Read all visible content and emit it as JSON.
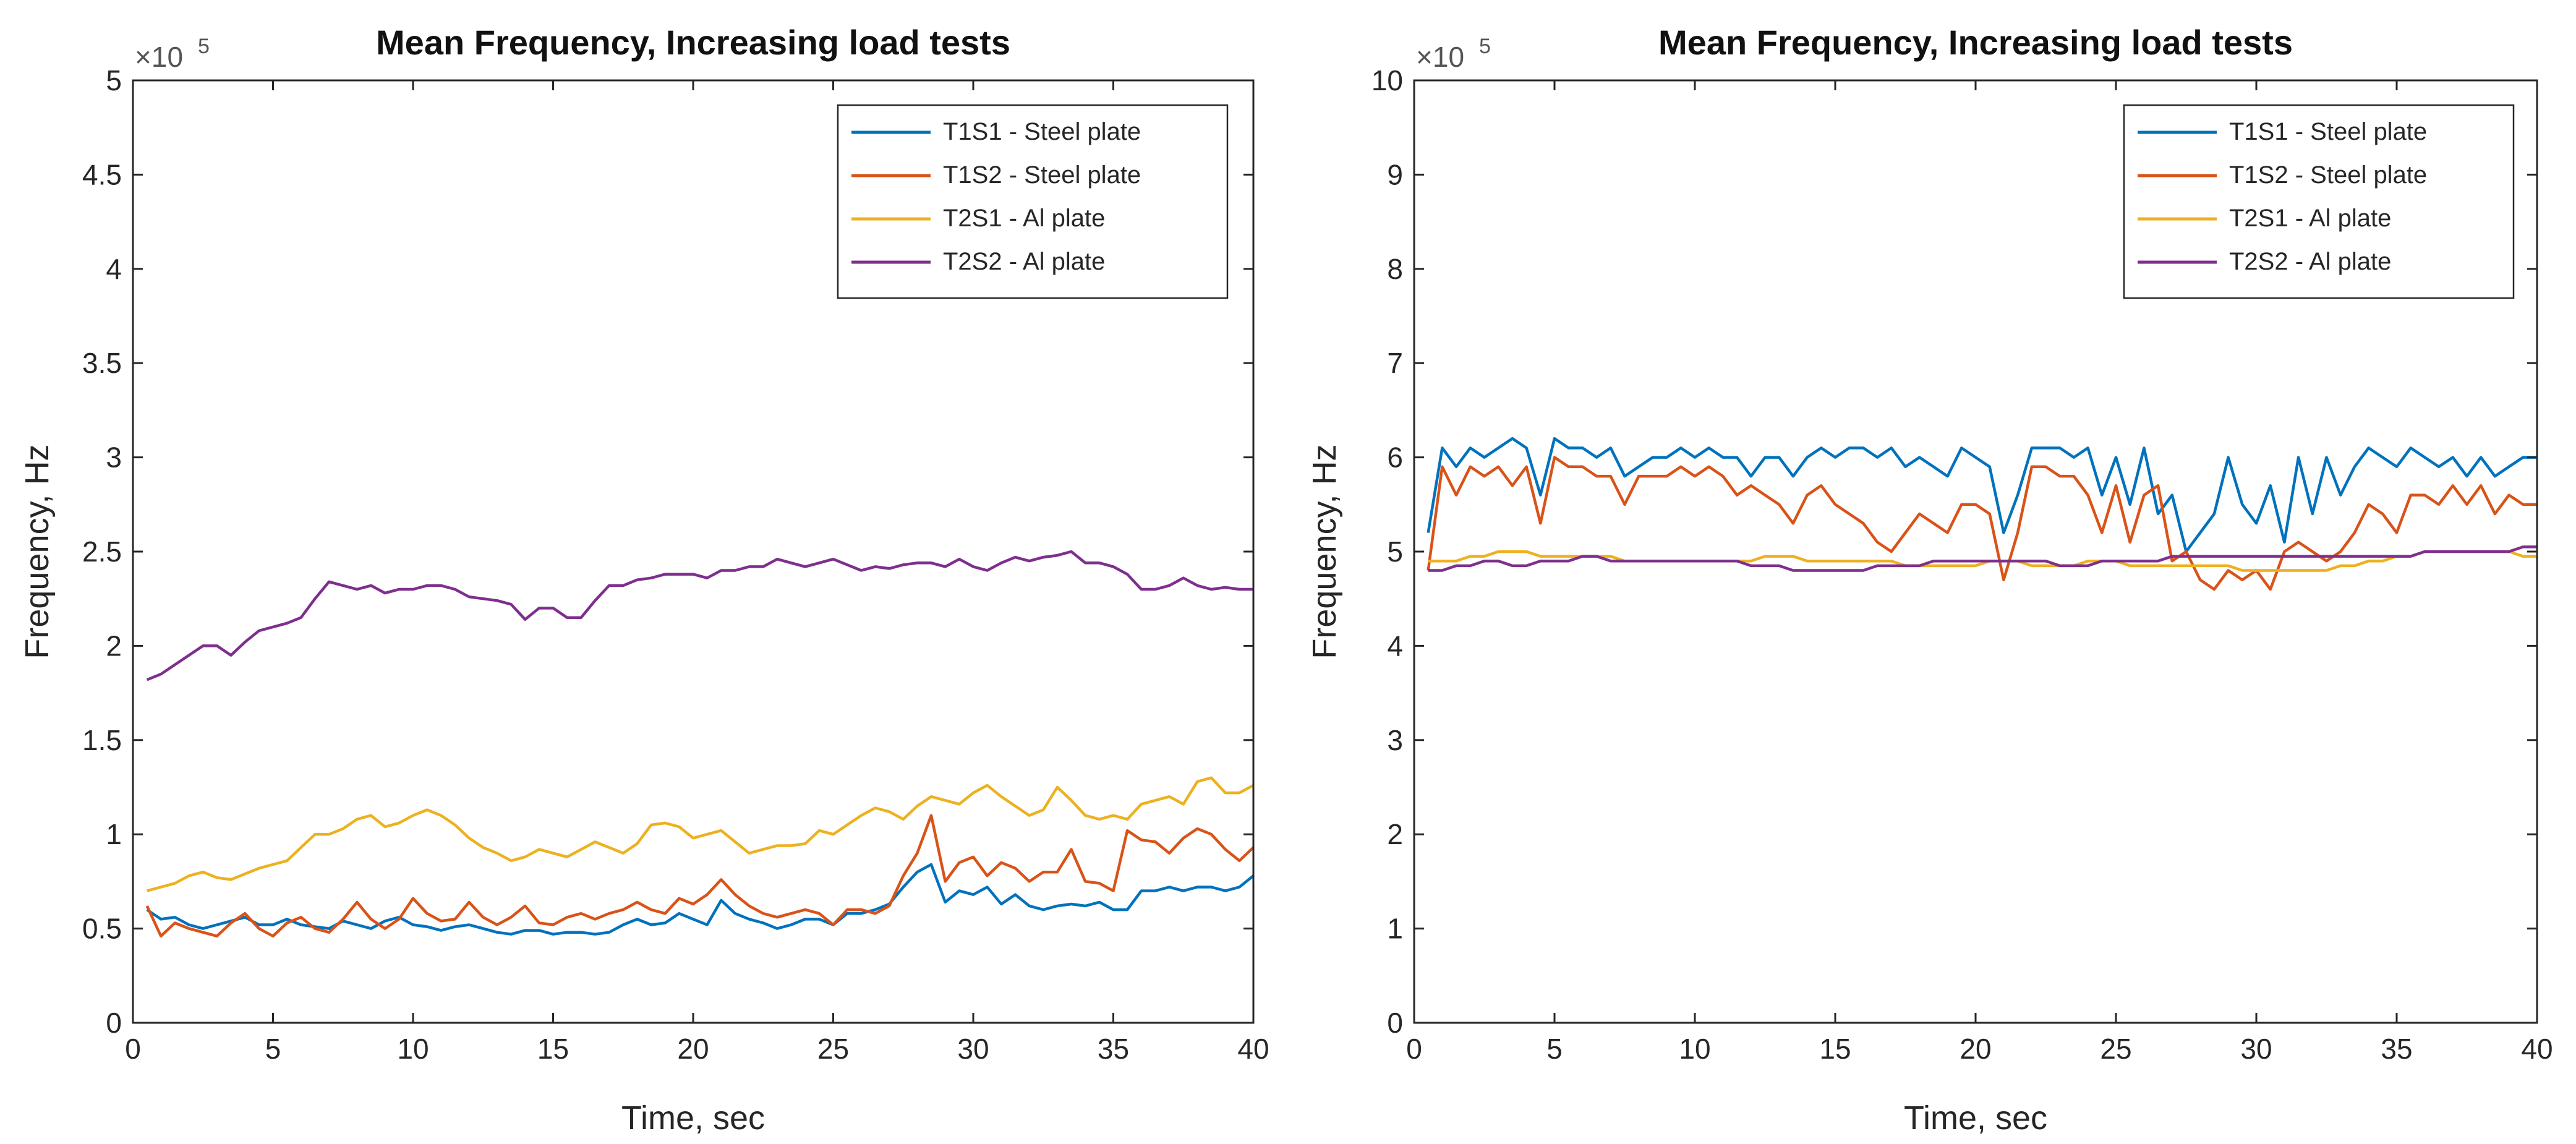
{
  "chart_data": [
    {
      "type": "line",
      "title": "Mean Frequency, Increasing load tests",
      "xlabel": "Time, sec",
      "ylabel": "Frequency, Hz",
      "exponent_label": "×10",
      "exponent_power": "5",
      "xlim": [
        0,
        40
      ],
      "ylim": [
        0,
        5
      ],
      "xticks": [
        "0",
        "5",
        "10",
        "15",
        "20",
        "25",
        "30",
        "35",
        "40"
      ],
      "yticks": [
        "0",
        "0.5",
        "1",
        "1.5",
        "2",
        "2.5",
        "3",
        "3.5",
        "4",
        "4.5",
        "5"
      ],
      "legend_position": "top-right",
      "x": [
        0.5,
        1,
        1.5,
        2,
        2.5,
        3,
        3.5,
        4,
        4.5,
        5,
        5.5,
        6,
        6.5,
        7,
        7.5,
        8,
        8.5,
        9,
        9.5,
        10,
        10.5,
        11,
        11.5,
        12,
        12.5,
        13,
        13.5,
        14,
        14.5,
        15,
        15.5,
        16,
        16.5,
        17,
        17.5,
        18,
        18.5,
        19,
        19.5,
        20,
        20.5,
        21,
        21.5,
        22,
        22.5,
        23,
        23.5,
        24,
        24.5,
        25,
        25.5,
        26,
        26.5,
        27,
        27.5,
        28,
        28.5,
        29,
        29.5,
        30,
        30.5,
        31,
        31.5,
        32,
        32.5,
        33,
        33.5,
        34,
        34.5,
        35,
        35.5,
        36,
        36.5,
        37,
        37.5,
        38,
        38.5,
        39,
        39.5,
        40
      ],
      "series": [
        {
          "name": "T1S1 - Steel plate",
          "color": "#0072BD",
          "values": [
            0.6,
            0.55,
            0.56,
            0.52,
            0.5,
            0.52,
            0.54,
            0.56,
            0.52,
            0.52,
            0.55,
            0.52,
            0.51,
            0.5,
            0.54,
            0.52,
            0.5,
            0.54,
            0.56,
            0.52,
            0.51,
            0.49,
            0.51,
            0.52,
            0.5,
            0.48,
            0.47,
            0.49,
            0.49,
            0.47,
            0.48,
            0.48,
            0.47,
            0.48,
            0.52,
            0.55,
            0.52,
            0.53,
            0.58,
            0.55,
            0.52,
            0.65,
            0.58,
            0.55,
            0.53,
            0.5,
            0.52,
            0.55,
            0.55,
            0.52,
            0.58,
            0.58,
            0.6,
            0.63,
            0.72,
            0.8,
            0.84,
            0.64,
            0.7,
            0.68,
            0.72,
            0.63,
            0.68,
            0.62,
            0.6,
            0.62,
            0.63,
            0.62,
            0.64,
            0.6,
            0.6,
            0.7,
            0.7,
            0.72,
            0.7,
            0.72,
            0.72,
            0.7,
            0.72,
            0.78
          ]
        },
        {
          "name": "T1S2 - Steel plate",
          "color": "#D95319",
          "values": [
            0.62,
            0.46,
            0.53,
            0.5,
            0.48,
            0.46,
            0.53,
            0.58,
            0.5,
            0.46,
            0.53,
            0.56,
            0.5,
            0.48,
            0.55,
            0.64,
            0.55,
            0.5,
            0.55,
            0.66,
            0.58,
            0.54,
            0.55,
            0.64,
            0.56,
            0.52,
            0.56,
            0.62,
            0.53,
            0.52,
            0.56,
            0.58,
            0.55,
            0.58,
            0.6,
            0.64,
            0.6,
            0.58,
            0.66,
            0.63,
            0.68,
            0.76,
            0.68,
            0.62,
            0.58,
            0.56,
            0.58,
            0.6,
            0.58,
            0.52,
            0.6,
            0.6,
            0.58,
            0.62,
            0.78,
            0.9,
            1.1,
            0.75,
            0.85,
            0.88,
            0.78,
            0.85,
            0.82,
            0.75,
            0.8,
            0.8,
            0.92,
            0.75,
            0.74,
            0.7,
            1.02,
            0.97,
            0.96,
            0.9,
            0.98,
            1.03,
            1.0,
            0.92,
            0.86,
            0.93
          ]
        },
        {
          "name": "T2S1 - Al plate",
          "color": "#EDB120",
          "values": [
            0.7,
            0.72,
            0.74,
            0.78,
            0.8,
            0.77,
            0.76,
            0.79,
            0.82,
            0.84,
            0.86,
            0.93,
            1.0,
            1.0,
            1.03,
            1.08,
            1.1,
            1.04,
            1.06,
            1.1,
            1.13,
            1.1,
            1.05,
            0.98,
            0.93,
            0.9,
            0.86,
            0.88,
            0.92,
            0.9,
            0.88,
            0.92,
            0.96,
            0.93,
            0.9,
            0.95,
            1.05,
            1.06,
            1.04,
            0.98,
            1.0,
            1.02,
            0.96,
            0.9,
            0.92,
            0.94,
            0.94,
            0.95,
            1.02,
            1.0,
            1.05,
            1.1,
            1.14,
            1.12,
            1.08,
            1.15,
            1.2,
            1.18,
            1.16,
            1.22,
            1.26,
            1.2,
            1.15,
            1.1,
            1.13,
            1.25,
            1.18,
            1.1,
            1.08,
            1.1,
            1.08,
            1.16,
            1.18,
            1.2,
            1.16,
            1.28,
            1.3,
            1.22,
            1.22,
            1.26
          ]
        },
        {
          "name": "T2S2 - Al plate",
          "color": "#7E2F8E",
          "values": [
            1.82,
            1.85,
            1.9,
            1.95,
            2.0,
            2.0,
            1.95,
            2.02,
            2.08,
            2.1,
            2.12,
            2.15,
            2.25,
            2.34,
            2.32,
            2.3,
            2.32,
            2.28,
            2.3,
            2.3,
            2.32,
            2.32,
            2.3,
            2.26,
            2.25,
            2.24,
            2.22,
            2.14,
            2.2,
            2.2,
            2.15,
            2.15,
            2.24,
            2.32,
            2.32,
            2.35,
            2.36,
            2.38,
            2.38,
            2.38,
            2.36,
            2.4,
            2.4,
            2.42,
            2.42,
            2.46,
            2.44,
            2.42,
            2.44,
            2.46,
            2.43,
            2.4,
            2.42,
            2.41,
            2.43,
            2.44,
            2.44,
            2.42,
            2.46,
            2.42,
            2.4,
            2.44,
            2.47,
            2.45,
            2.47,
            2.48,
            2.5,
            2.44,
            2.44,
            2.42,
            2.38,
            2.3,
            2.3,
            2.32,
            2.36,
            2.32,
            2.3,
            2.31,
            2.3,
            2.3
          ]
        }
      ]
    },
    {
      "type": "line",
      "title": "Mean Frequency, Increasing load tests",
      "xlabel": "Time, sec",
      "ylabel": "Frequency, Hz",
      "exponent_label": "×10",
      "exponent_power": "5",
      "xlim": [
        0,
        40
      ],
      "ylim": [
        0,
        10
      ],
      "xticks": [
        "0",
        "5",
        "10",
        "15",
        "20",
        "25",
        "30",
        "35",
        "40"
      ],
      "yticks": [
        "0",
        "1",
        "2",
        "3",
        "4",
        "5",
        "6",
        "7",
        "8",
        "9",
        "10"
      ],
      "legend_position": "top-right",
      "x": [
        0.5,
        1,
        1.5,
        2,
        2.5,
        3,
        3.5,
        4,
        4.5,
        5,
        5.5,
        6,
        6.5,
        7,
        7.5,
        8,
        8.5,
        9,
        9.5,
        10,
        10.5,
        11,
        11.5,
        12,
        12.5,
        13,
        13.5,
        14,
        14.5,
        15,
        15.5,
        16,
        16.5,
        17,
        17.5,
        18,
        18.5,
        19,
        19.5,
        20,
        20.5,
        21,
        21.5,
        22,
        22.5,
        23,
        23.5,
        24,
        24.5,
        25,
        25.5,
        26,
        26.5,
        27,
        27.5,
        28,
        28.5,
        29,
        29.5,
        30,
        30.5,
        31,
        31.5,
        32,
        32.5,
        33,
        33.5,
        34,
        34.5,
        35,
        35.5,
        36,
        36.5,
        37,
        37.5,
        38,
        38.5,
        39,
        39.5,
        40
      ],
      "series": [
        {
          "name": "T1S1 - Steel plate",
          "color": "#0072BD",
          "values": [
            5.2,
            6.1,
            5.9,
            6.1,
            6.0,
            6.1,
            6.2,
            6.1,
            5.6,
            6.2,
            6.1,
            6.1,
            6.0,
            6.1,
            5.8,
            5.9,
            6.0,
            6.0,
            6.1,
            6.0,
            6.1,
            6.0,
            6.0,
            5.8,
            6.0,
            6.0,
            5.8,
            6.0,
            6.1,
            6.0,
            6.1,
            6.1,
            6.0,
            6.1,
            5.9,
            6.0,
            5.9,
            5.8,
            6.1,
            6.0,
            5.9,
            5.2,
            5.6,
            6.1,
            6.1,
            6.1,
            6.0,
            6.1,
            5.6,
            6.0,
            5.5,
            6.1,
            5.4,
            5.6,
            5.0,
            5.2,
            5.4,
            6.0,
            5.5,
            5.3,
            5.7,
            5.1,
            6.0,
            5.4,
            6.0,
            5.6,
            5.9,
            6.1,
            6.0,
            5.9,
            6.1,
            6.0,
            5.9,
            6.0,
            5.8,
            6.0,
            5.8,
            5.9,
            6.0,
            6.0
          ]
        },
        {
          "name": "T1S2 - Steel plate",
          "color": "#D95319",
          "values": [
            4.8,
            5.9,
            5.6,
            5.9,
            5.8,
            5.9,
            5.7,
            5.9,
            5.3,
            6.0,
            5.9,
            5.9,
            5.8,
            5.8,
            5.5,
            5.8,
            5.8,
            5.8,
            5.9,
            5.8,
            5.9,
            5.8,
            5.6,
            5.7,
            5.6,
            5.5,
            5.3,
            5.6,
            5.7,
            5.5,
            5.4,
            5.3,
            5.1,
            5.0,
            5.2,
            5.4,
            5.3,
            5.2,
            5.5,
            5.5,
            5.4,
            4.7,
            5.2,
            5.9,
            5.9,
            5.8,
            5.8,
            5.6,
            5.2,
            5.7,
            5.1,
            5.6,
            5.7,
            4.9,
            5.0,
            4.7,
            4.6,
            4.8,
            4.7,
            4.8,
            4.6,
            5.0,
            5.1,
            5.0,
            4.9,
            5.0,
            5.2,
            5.5,
            5.4,
            5.2,
            5.6,
            5.6,
            5.5,
            5.7,
            5.5,
            5.7,
            5.4,
            5.6,
            5.5,
            5.5
          ]
        },
        {
          "name": "T2S1 - Al plate",
          "color": "#EDB120",
          "values": [
            4.9,
            4.9,
            4.9,
            4.95,
            4.95,
            5.0,
            5.0,
            5.0,
            4.95,
            4.95,
            4.95,
            4.95,
            4.95,
            4.95,
            4.9,
            4.9,
            4.9,
            4.9,
            4.9,
            4.9,
            4.9,
            4.9,
            4.9,
            4.9,
            4.95,
            4.95,
            4.95,
            4.9,
            4.9,
            4.9,
            4.9,
            4.9,
            4.9,
            4.9,
            4.85,
            4.85,
            4.85,
            4.85,
            4.85,
            4.85,
            4.9,
            4.9,
            4.9,
            4.85,
            4.85,
            4.85,
            4.85,
            4.9,
            4.9,
            4.9,
            4.85,
            4.85,
            4.85,
            4.85,
            4.85,
            4.85,
            4.85,
            4.85,
            4.8,
            4.8,
            4.8,
            4.8,
            4.8,
            4.8,
            4.8,
            4.85,
            4.85,
            4.9,
            4.9,
            4.95,
            4.95,
            5.0,
            5.0,
            5.0,
            5.0,
            5.0,
            5.0,
            5.0,
            4.95,
            4.95
          ]
        },
        {
          "name": "T2S2 - Al plate",
          "color": "#7E2F8E",
          "values": [
            4.8,
            4.8,
            4.85,
            4.85,
            4.9,
            4.9,
            4.85,
            4.85,
            4.9,
            4.9,
            4.9,
            4.95,
            4.95,
            4.9,
            4.9,
            4.9,
            4.9,
            4.9,
            4.9,
            4.9,
            4.9,
            4.9,
            4.9,
            4.85,
            4.85,
            4.85,
            4.8,
            4.8,
            4.8,
            4.8,
            4.8,
            4.8,
            4.85,
            4.85,
            4.85,
            4.85,
            4.9,
            4.9,
            4.9,
            4.9,
            4.9,
            4.9,
            4.9,
            4.9,
            4.9,
            4.85,
            4.85,
            4.85,
            4.9,
            4.9,
            4.9,
            4.9,
            4.9,
            4.95,
            4.95,
            4.95,
            4.95,
            4.95,
            4.95,
            4.95,
            4.95,
            4.95,
            4.95,
            4.95,
            4.95,
            4.95,
            4.95,
            4.95,
            4.95,
            4.95,
            4.95,
            5.0,
            5.0,
            5.0,
            5.0,
            5.0,
            5.0,
            5.0,
            5.05,
            5.05
          ]
        }
      ]
    }
  ]
}
